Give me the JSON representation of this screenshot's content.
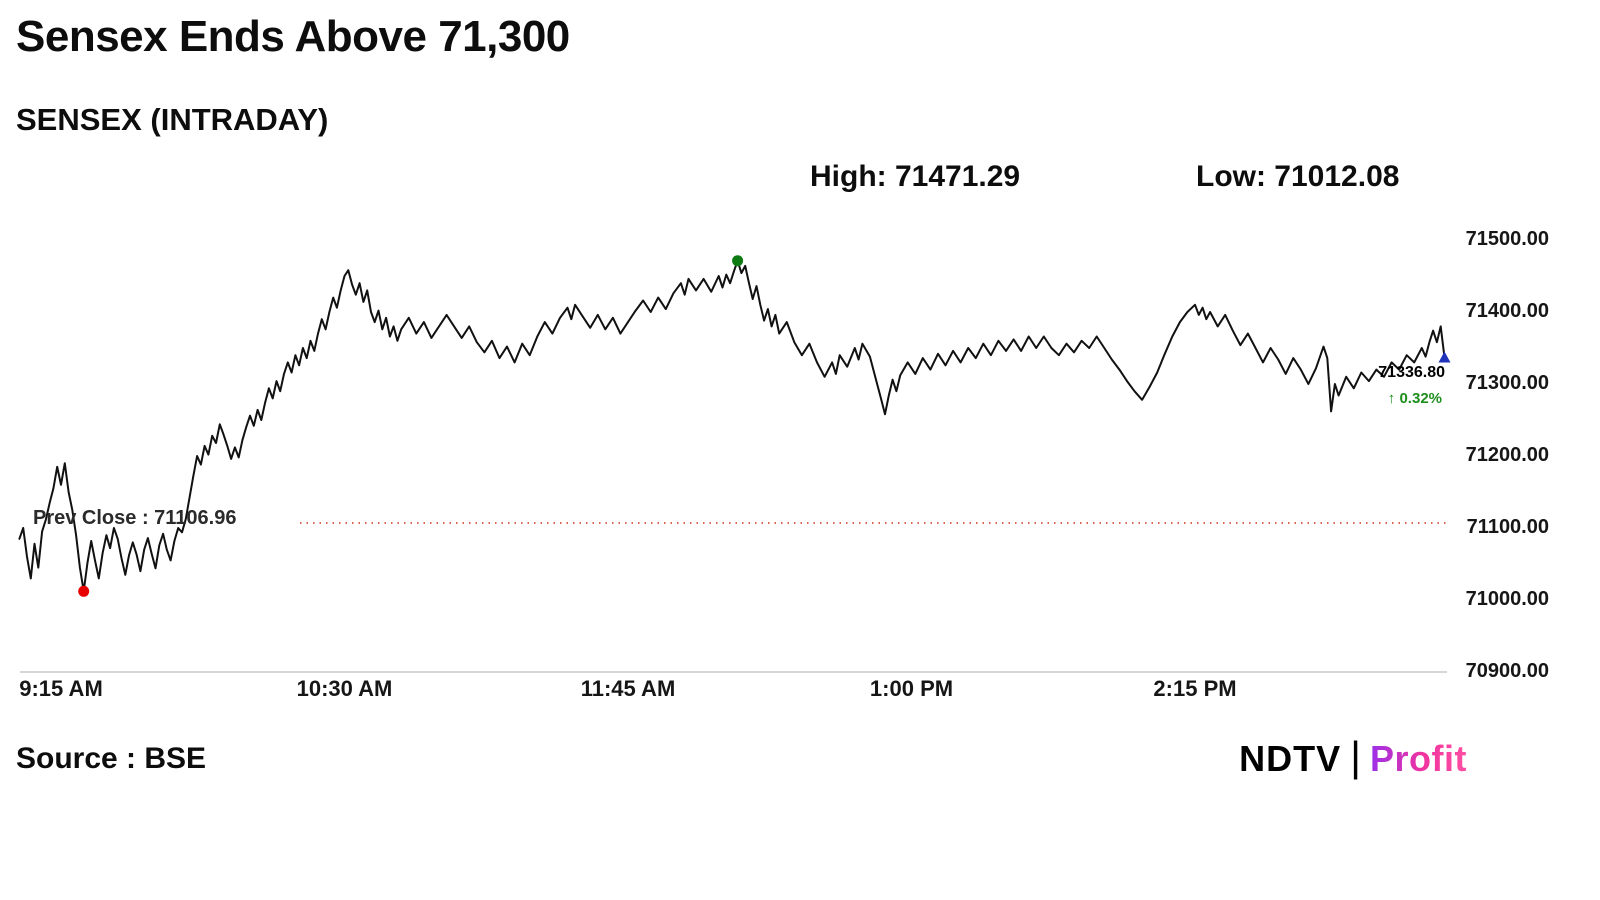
{
  "page": {
    "title": "Sensex Ends Above 71,300",
    "subtitle": "SENSEX (INTRADAY)",
    "source": "Source : BSE",
    "logo": {
      "ndtv": "NDTV",
      "separator": "|",
      "profit": "Profit"
    }
  },
  "chart_data": {
    "type": "line",
    "title": "SENSEX (INTRADAY)",
    "grid": false,
    "legend": "none",
    "x_unit": "minutes from 9:15 AM",
    "xlim": [
      -11,
      366
    ],
    "ylim": [
      70900,
      71500
    ],
    "high": {
      "label": "High: 71471.29",
      "value": 71471.29
    },
    "low": {
      "label": "Low: 71012.08",
      "value": 71012.08
    },
    "prev_close": {
      "label": "Prev Close : 71106.96",
      "value": 71106.96
    },
    "last": {
      "value": 71336.8,
      "value_label": "71336.80",
      "change_label": "↑ 0.32%",
      "change_pct": 0.32
    },
    "y_ticks": [
      {
        "v": 71500,
        "label": "71500.00"
      },
      {
        "v": 71400,
        "label": "71400.00"
      },
      {
        "v": 71300,
        "label": "71300.00"
      },
      {
        "v": 71200,
        "label": "71200.00"
      },
      {
        "v": 71100,
        "label": "71100.00"
      },
      {
        "v": 71000,
        "label": "71000.00"
      },
      {
        "v": 70900,
        "label": "70900.00"
      }
    ],
    "x_ticks": [
      {
        "t": 0,
        "label": "9:15 AM"
      },
      {
        "t": 75,
        "label": "10:30 AM"
      },
      {
        "t": 150,
        "label": "11:45 AM"
      },
      {
        "t": 225,
        "label": "1:00 PM"
      },
      {
        "t": 300,
        "label": "2:15 PM"
      }
    ],
    "colors": {
      "line": "#111111",
      "prev_close_line": "#dd6355",
      "high_dot": "#0e7a12",
      "low_dot": "#e80000",
      "end_marker": "#2233bb",
      "change_text": "#1e8e1e",
      "axis_line": "#c9c9c9"
    },
    "markers": {
      "low_t": 6,
      "high_t": 179,
      "end_t": 366
    },
    "series": [
      {
        "name": "SENSEX",
        "points": [
          [
            -11,
            71085
          ],
          [
            -10,
            71100
          ],
          [
            -9,
            71060
          ],
          [
            -8,
            71030
          ],
          [
            -7,
            71078
          ],
          [
            -6,
            71045
          ],
          [
            -5,
            71095
          ],
          [
            -4,
            71112
          ],
          [
            -3,
            71135
          ],
          [
            -2,
            71155
          ],
          [
            -1,
            71185
          ],
          [
            0,
            71160
          ],
          [
            1,
            71190
          ],
          [
            2,
            71150
          ],
          [
            3,
            71125
          ],
          [
            4,
            71090
          ],
          [
            5,
            71045
          ],
          [
            6,
            71012.08
          ],
          [
            7,
            71052
          ],
          [
            8,
            71082
          ],
          [
            9,
            71055
          ],
          [
            10,
            71030
          ],
          [
            11,
            71065
          ],
          [
            12,
            71090
          ],
          [
            13,
            71072
          ],
          [
            14,
            71100
          ],
          [
            15,
            71085
          ],
          [
            16,
            71058
          ],
          [
            17,
            71035
          ],
          [
            18,
            71062
          ],
          [
            19,
            71080
          ],
          [
            20,
            71063
          ],
          [
            21,
            71040
          ],
          [
            22,
            71070
          ],
          [
            23,
            71086
          ],
          [
            24,
            71064
          ],
          [
            25,
            71044
          ],
          [
            26,
            71076
          ],
          [
            27,
            71092
          ],
          [
            28,
            71070
          ],
          [
            29,
            71055
          ],
          [
            30,
            71082
          ],
          [
            31,
            71100
          ],
          [
            32,
            71094
          ],
          [
            33,
            71112
          ],
          [
            34,
            71142
          ],
          [
            35,
            71172
          ],
          [
            36,
            71200
          ],
          [
            37,
            71188
          ],
          [
            38,
            71214
          ],
          [
            39,
            71202
          ],
          [
            40,
            71228
          ],
          [
            41,
            71218
          ],
          [
            42,
            71244
          ],
          [
            43,
            71230
          ],
          [
            44,
            71214
          ],
          [
            45,
            71196
          ],
          [
            46,
            71212
          ],
          [
            47,
            71198
          ],
          [
            48,
            71222
          ],
          [
            49,
            71240
          ],
          [
            50,
            71256
          ],
          [
            51,
            71242
          ],
          [
            52,
            71264
          ],
          [
            53,
            71250
          ],
          [
            54,
            71274
          ],
          [
            55,
            71294
          ],
          [
            56,
            71280
          ],
          [
            57,
            71304
          ],
          [
            58,
            71290
          ],
          [
            59,
            71314
          ],
          [
            60,
            71330
          ],
          [
            61,
            71316
          ],
          [
            62,
            71340
          ],
          [
            63,
            71326
          ],
          [
            64,
            71350
          ],
          [
            65,
            71336
          ],
          [
            66,
            71360
          ],
          [
            67,
            71346
          ],
          [
            68,
            71370
          ],
          [
            69,
            71390
          ],
          [
            70,
            71376
          ],
          [
            71,
            71400
          ],
          [
            72,
            71420
          ],
          [
            73,
            71406
          ],
          [
            74,
            71430
          ],
          [
            75,
            71450
          ],
          [
            76,
            71458
          ],
          [
            77,
            71438
          ],
          [
            78,
            71424
          ],
          [
            79,
            71440
          ],
          [
            80,
            71414
          ],
          [
            81,
            71430
          ],
          [
            82,
            71400
          ],
          [
            83,
            71386
          ],
          [
            84,
            71402
          ],
          [
            85,
            71376
          ],
          [
            86,
            71392
          ],
          [
            87,
            71366
          ],
          [
            88,
            71380
          ],
          [
            89,
            71360
          ],
          [
            90,
            71376
          ],
          [
            92,
            71392
          ],
          [
            94,
            71370
          ],
          [
            96,
            71386
          ],
          [
            98,
            71364
          ],
          [
            100,
            71380
          ],
          [
            102,
            71396
          ],
          [
            104,
            71380
          ],
          [
            106,
            71364
          ],
          [
            108,
            71380
          ],
          [
            110,
            71358
          ],
          [
            112,
            71344
          ],
          [
            114,
            71360
          ],
          [
            116,
            71336
          ],
          [
            118,
            71352
          ],
          [
            120,
            71330
          ],
          [
            122,
            71356
          ],
          [
            124,
            71340
          ],
          [
            126,
            71366
          ],
          [
            128,
            71386
          ],
          [
            130,
            71370
          ],
          [
            132,
            71392
          ],
          [
            134,
            71406
          ],
          [
            135,
            71390
          ],
          [
            136,
            71410
          ],
          [
            138,
            71394
          ],
          [
            140,
            71378
          ],
          [
            142,
            71396
          ],
          [
            144,
            71376
          ],
          [
            146,
            71392
          ],
          [
            148,
            71370
          ],
          [
            150,
            71386
          ],
          [
            152,
            71402
          ],
          [
            154,
            71416
          ],
          [
            156,
            71400
          ],
          [
            158,
            71420
          ],
          [
            160,
            71404
          ],
          [
            162,
            71426
          ],
          [
            164,
            71440
          ],
          [
            165,
            71424
          ],
          [
            166,
            71446
          ],
          [
            168,
            71430
          ],
          [
            170,
            71446
          ],
          [
            172,
            71428
          ],
          [
            174,
            71450
          ],
          [
            175,
            71434
          ],
          [
            176,
            71452
          ],
          [
            177,
            71440
          ],
          [
            178,
            71456
          ],
          [
            179,
            71471.29
          ],
          [
            180,
            71454
          ],
          [
            181,
            71464
          ],
          [
            182,
            71440
          ],
          [
            183,
            71418
          ],
          [
            184,
            71436
          ],
          [
            185,
            71410
          ],
          [
            186,
            71388
          ],
          [
            187,
            71404
          ],
          [
            188,
            71380
          ],
          [
            189,
            71396
          ],
          [
            190,
            71370
          ],
          [
            192,
            71386
          ],
          [
            194,
            71358
          ],
          [
            196,
            71340
          ],
          [
            198,
            71356
          ],
          [
            200,
            71330
          ],
          [
            202,
            71310
          ],
          [
            204,
            71330
          ],
          [
            205,
            71314
          ],
          [
            206,
            71340
          ],
          [
            208,
            71324
          ],
          [
            210,
            71350
          ],
          [
            211,
            71334
          ],
          [
            212,
            71356
          ],
          [
            214,
            71338
          ],
          [
            215,
            71318
          ],
          [
            216,
            71298
          ],
          [
            217,
            71278
          ],
          [
            218,
            71258
          ],
          [
            219,
            71284
          ],
          [
            220,
            71306
          ],
          [
            221,
            71290
          ],
          [
            222,
            71312
          ],
          [
            224,
            71330
          ],
          [
            226,
            71314
          ],
          [
            228,
            71336
          ],
          [
            230,
            71320
          ],
          [
            232,
            71342
          ],
          [
            234,
            71326
          ],
          [
            236,
            71346
          ],
          [
            238,
            71330
          ],
          [
            240,
            71350
          ],
          [
            242,
            71336
          ],
          [
            244,
            71356
          ],
          [
            246,
            71340
          ],
          [
            248,
            71360
          ],
          [
            250,
            71346
          ],
          [
            252,
            71362
          ],
          [
            254,
            71346
          ],
          [
            256,
            71366
          ],
          [
            258,
            71350
          ],
          [
            260,
            71366
          ],
          [
            262,
            71350
          ],
          [
            264,
            71340
          ],
          [
            266,
            71356
          ],
          [
            268,
            71344
          ],
          [
            270,
            71360
          ],
          [
            272,
            71350
          ],
          [
            274,
            71366
          ],
          [
            276,
            71350
          ],
          [
            278,
            71334
          ],
          [
            280,
            71320
          ],
          [
            282,
            71304
          ],
          [
            284,
            71290
          ],
          [
            286,
            71278
          ],
          [
            288,
            71296
          ],
          [
            290,
            71316
          ],
          [
            292,
            71342
          ],
          [
            294,
            71366
          ],
          [
            296,
            71386
          ],
          [
            298,
            71400
          ],
          [
            300,
            71410
          ],
          [
            301,
            71396
          ],
          [
            302,
            71406
          ],
          [
            303,
            71390
          ],
          [
            304,
            71400
          ],
          [
            306,
            71380
          ],
          [
            308,
            71396
          ],
          [
            310,
            71374
          ],
          [
            312,
            71354
          ],
          [
            314,
            71370
          ],
          [
            316,
            71350
          ],
          [
            318,
            71330
          ],
          [
            320,
            71350
          ],
          [
            322,
            71334
          ],
          [
            324,
            71314
          ],
          [
            326,
            71336
          ],
          [
            328,
            71320
          ],
          [
            330,
            71300
          ],
          [
            332,
            71322
          ],
          [
            334,
            71352
          ],
          [
            335,
            71336
          ],
          [
            336,
            71262
          ],
          [
            337,
            71300
          ],
          [
            338,
            71284
          ],
          [
            340,
            71310
          ],
          [
            342,
            71294
          ],
          [
            344,
            71316
          ],
          [
            346,
            71304
          ],
          [
            348,
            71320
          ],
          [
            350,
            71310
          ],
          [
            352,
            71330
          ],
          [
            354,
            71320
          ],
          [
            356,
            71340
          ],
          [
            358,
            71330
          ],
          [
            360,
            71350
          ],
          [
            361,
            71338
          ],
          [
            362,
            71358
          ],
          [
            363,
            71374
          ],
          [
            364,
            71358
          ],
          [
            365,
            71380
          ],
          [
            366,
            71336.8
          ]
        ]
      }
    ]
  }
}
